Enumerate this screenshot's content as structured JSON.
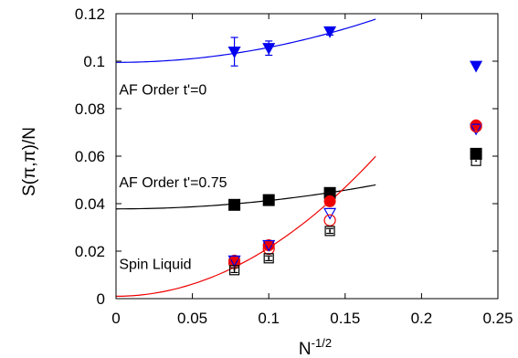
{
  "chart_data": {
    "type": "scatter",
    "xlabel_base": "N",
    "xlabel_sup": "-1/2",
    "ylabel": "S(π,π)/N",
    "xlim": [
      0,
      0.25
    ],
    "ylim": [
      0,
      0.12
    ],
    "xticks": [
      0,
      0.05,
      0.1,
      0.15,
      0.2,
      0.25
    ],
    "xtick_labels": [
      "0",
      "0.05",
      "0.1",
      "0.15",
      "0.2",
      "0.25"
    ],
    "yticks": [
      0,
      0.02,
      0.04,
      0.06,
      0.08,
      0.1,
      0.12
    ],
    "ytick_labels": [
      "0",
      "0.02",
      "0.04",
      "0.06",
      "0.08",
      "0.1",
      "0.12"
    ],
    "grid": false,
    "annotations": [
      {
        "text": "AF Order t'=0",
        "x": 0.002,
        "y": 0.086
      },
      {
        "text": "AF Order t'=0.75",
        "x": 0.002,
        "y": 0.047
      },
      {
        "text": "Spin Liquid",
        "x": 0.002,
        "y": 0.0125
      }
    ],
    "series": [
      {
        "marker": "triangle-down-filled",
        "color": "#0000ee",
        "x": [
          0.0775,
          0.1,
          0.14,
          0.2357
        ],
        "y": [
          0.104,
          0.1055,
          0.1125,
          0.098
        ],
        "yerr": [
          0.006,
          0.003,
          0.0015,
          0
        ]
      },
      {
        "marker": "square-filled",
        "color": "#000000",
        "x": [
          0.0775,
          0.1,
          0.14,
          0.2357
        ],
        "y": [
          0.0395,
          0.0415,
          0.0445,
          0.061
        ],
        "yerr": [
          0.0015,
          0.0012,
          0.001,
          0
        ]
      },
      {
        "marker": "circle-filled",
        "color": "#ee0000",
        "x": [
          0.0775,
          0.1,
          0.14,
          0.2357
        ],
        "y": [
          0.016,
          0.0225,
          0.041,
          0.073
        ],
        "yerr": [
          0,
          0,
          0,
          0
        ]
      },
      {
        "marker": "triangle-down-open",
        "color": "#0000ee",
        "x": [
          0.0775,
          0.1,
          0.14,
          0.2357
        ],
        "y": [
          0.016,
          0.0225,
          0.036,
          0.0715
        ],
        "yerr": [
          0,
          0,
          0,
          0
        ]
      },
      {
        "marker": "circle-open",
        "color": "#ee0000",
        "x": [
          0.0775,
          0.1,
          0.14,
          0.2357
        ],
        "y": [
          0.015,
          0.021,
          0.033,
          0.0725
        ],
        "yerr": [
          0,
          0,
          0,
          0
        ]
      },
      {
        "marker": "square-open",
        "color": "#000000",
        "x": [
          0.0775,
          0.1,
          0.14,
          0.2357
        ],
        "y": [
          0.012,
          0.017,
          0.0285,
          0.058
        ],
        "yerr": [
          0.001,
          0.001,
          0.001,
          0
        ]
      }
    ],
    "fits": [
      {
        "color": "#0000ee",
        "x_range": [
          0,
          0.17
        ],
        "a": 0.0995,
        "b": 0.63
      },
      {
        "color": "#000000",
        "x_range": [
          0,
          0.17
        ],
        "a": 0.0378,
        "b": 0.35
      },
      {
        "color": "#ee0000",
        "x_range": [
          0,
          0.17
        ],
        "a": 0.001,
        "b": 2.04
      }
    ]
  }
}
